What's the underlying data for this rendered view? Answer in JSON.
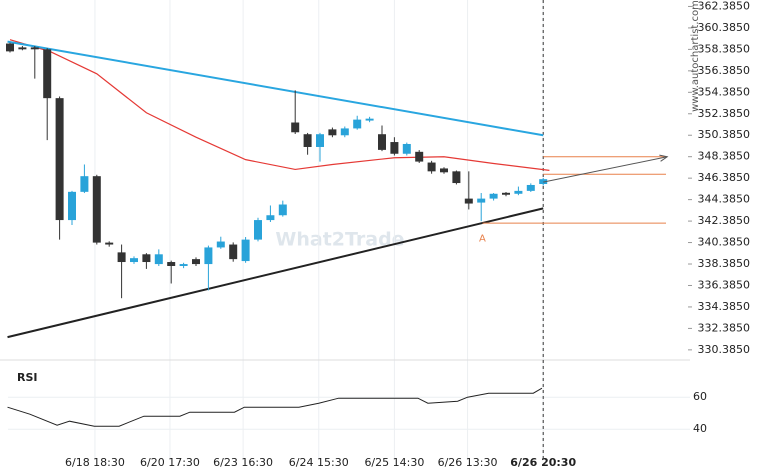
{
  "chart_data": {
    "type": "candlestick",
    "watermark": "What2Trade",
    "source": "www.autochartist.com",
    "up_color": "#29a3d9",
    "down_color": "#333333",
    "ma_color": "#e53935",
    "trend_color": "#29a6e0",
    "support_color": "#222222",
    "level_color": "#e8804a",
    "candles": [
      [
        358.93,
        359.0,
        358.1,
        358.2
      ],
      [
        358.57,
        358.7,
        358.3,
        358.39
      ],
      [
        358.57,
        358.7,
        355.66,
        358.39
      ],
      [
        358.39,
        358.5,
        349.93,
        353.84
      ],
      [
        353.84,
        354.0,
        340.66,
        342.48
      ],
      [
        342.48,
        345.2,
        342.02,
        345.11
      ],
      [
        345.11,
        347.66,
        345.0,
        346.57
      ],
      [
        346.57,
        346.7,
        340.2,
        340.38
      ],
      [
        340.38,
        340.5,
        340.0,
        340.2
      ],
      [
        339.47,
        340.2,
        335.2,
        338.57
      ],
      [
        338.57,
        339.1,
        338.4,
        338.93
      ],
      [
        339.29,
        339.4,
        337.93,
        338.57
      ],
      [
        338.38,
        339.75,
        338.2,
        339.29
      ],
      [
        338.57,
        338.7,
        336.57,
        338.2
      ],
      [
        338.2,
        338.5,
        338.0,
        338.38
      ],
      [
        338.84,
        339.0,
        338.2,
        338.38
      ],
      [
        338.38,
        340.1,
        335.93,
        339.93
      ],
      [
        339.93,
        340.93,
        339.8,
        340.48
      ],
      [
        340.2,
        340.4,
        338.6,
        338.84
      ],
      [
        338.66,
        340.9,
        338.5,
        340.66
      ],
      [
        340.66,
        342.7,
        340.5,
        342.48
      ],
      [
        342.48,
        343.84,
        342.3,
        342.93
      ],
      [
        342.93,
        344.29,
        342.8,
        343.93
      ],
      [
        351.57,
        354.57,
        350.5,
        350.66
      ],
      [
        350.48,
        350.6,
        348.57,
        349.29
      ],
      [
        349.29,
        350.6,
        347.93,
        350.48
      ],
      [
        350.93,
        351.1,
        350.2,
        350.38
      ],
      [
        350.38,
        351.2,
        350.2,
        351.02
      ],
      [
        351.02,
        352.2,
        350.9,
        351.84
      ],
      [
        351.75,
        352.1,
        351.6,
        351.93
      ],
      [
        350.48,
        351.29,
        348.9,
        349.02
      ],
      [
        349.75,
        350.2,
        348.5,
        348.66
      ],
      [
        348.66,
        349.7,
        348.5,
        349.57
      ],
      [
        348.84,
        349.0,
        347.8,
        347.93
      ],
      [
        347.84,
        348.0,
        346.8,
        347.02
      ],
      [
        347.29,
        347.4,
        346.8,
        346.93
      ],
      [
        347.02,
        347.1,
        345.8,
        345.93
      ],
      [
        344.48,
        347.02,
        343.47,
        344.02
      ],
      [
        344.11,
        345.0,
        342.38,
        344.48
      ],
      [
        344.48,
        345.0,
        344.3,
        344.93
      ],
      [
        345.02,
        345.1,
        344.7,
        344.84
      ],
      [
        344.93,
        345.6,
        344.8,
        345.2
      ],
      [
        345.2,
        345.9,
        345.1,
        345.75
      ],
      [
        345.84,
        346.4,
        345.7,
        346.29
      ]
    ],
    "ma": {
      "x": [
        0,
        3.2,
        7,
        11,
        15,
        19,
        23,
        26,
        31,
        35,
        39,
        43.5
      ],
      "values": [
        359.29,
        358.2,
        356.11,
        352.48,
        350.2,
        348.11,
        347.2,
        347.66,
        348.29,
        348.38,
        347.75,
        347.11
      ]
    },
    "resistance": {
      "x": [
        -0.2,
        43
      ],
      "values": [
        359.11,
        350.38
      ]
    },
    "support": {
      "x": [
        -0.2,
        43
      ],
      "values": [
        331.57,
        343.57
      ]
    },
    "levels": [
      {
        "from": 43,
        "value": 348.38
      },
      {
        "from": 43,
        "value": 346.75
      },
      {
        "from": 38.1,
        "value": 342.2
      }
    ],
    "arrow": {
      "x": [
        43,
        53
      ],
      "values": [
        346.02,
        348.38
      ]
    },
    "point_label": "A",
    "point": {
      "x": 38.1,
      "value": 341.5
    },
    "ylim": [
      330.0,
      362.8
    ],
    "yticks": [
      {
        "value": 362.385,
        "label": "362.3850"
      },
      {
        "value": 360.385,
        "label": "360.3850"
      },
      {
        "value": 358.385,
        "label": "358.3850"
      },
      {
        "value": 356.385,
        "label": "356.3850"
      },
      {
        "value": 354.385,
        "label": "354.3850"
      },
      {
        "value": 352.385,
        "label": "352.3850"
      },
      {
        "value": 350.385,
        "label": "350.3850"
      },
      {
        "value": 348.385,
        "label": "348.3850"
      },
      {
        "value": 346.385,
        "label": "346.3850"
      },
      {
        "value": 344.385,
        "label": "344.3850"
      },
      {
        "value": 342.385,
        "label": "342.3850"
      },
      {
        "value": 340.385,
        "label": "340.3850"
      },
      {
        "value": 338.385,
        "label": "338.3850"
      },
      {
        "value": 336.385,
        "label": "336.3850"
      },
      {
        "value": 334.385,
        "label": "334.3850"
      },
      {
        "value": 332.385,
        "label": "332.3850"
      },
      {
        "value": 330.385,
        "label": "330.3850"
      }
    ],
    "xticks": [
      {
        "value": 6.85,
        "label": "6/18 18:30"
      },
      {
        "value": 12.9,
        "label": "6/20 17:30"
      },
      {
        "value": 18.8,
        "label": "6/23 16:30"
      },
      {
        "value": 24.9,
        "label": "6/24 15:30"
      },
      {
        "value": 31,
        "label": "6/25 14:30"
      },
      {
        "value": 36.9,
        "label": "6/26 13:30"
      },
      {
        "value": 43,
        "label": "6/26 20:30"
      }
    ],
    "rsi": {
      "label": "RSI",
      "color": "#222222",
      "x": [
        -0.2,
        1.6,
        3.8,
        4.8,
        6.8,
        8.8,
        10.8,
        13.7,
        14.5,
        18.1,
        18.9,
        23.3,
        24.9,
        26.5,
        32.9,
        33.7,
        36.1,
        36.9,
        38.6,
        42.2,
        42.9
      ],
      "values": [
        53.75,
        49.38,
        42.5,
        45,
        41.88,
        41.88,
        48.13,
        48.13,
        50.63,
        50.63,
        53.75,
        53.75,
        56.25,
        59.38,
        59.38,
        56.25,
        57.5,
        60,
        62.5,
        62.5,
        65.63
      ],
      "ylim": [
        22,
        82
      ],
      "yticks": [
        60,
        40
      ]
    }
  }
}
